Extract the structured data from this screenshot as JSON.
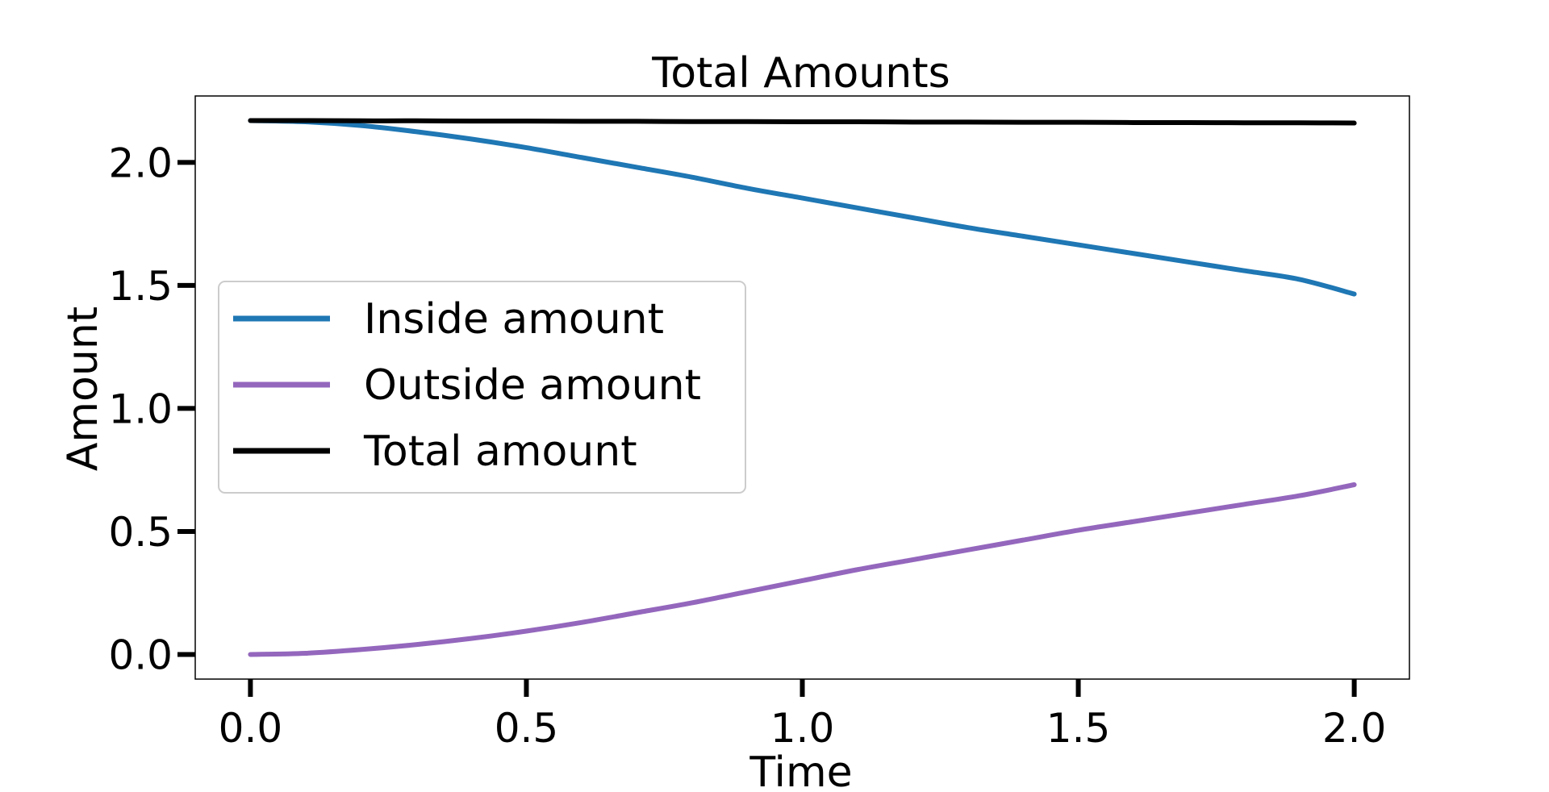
{
  "chart_data": {
    "type": "line",
    "title": "Total Amounts",
    "xlabel": "Time",
    "ylabel": "Amount",
    "xlim": [
      -0.1,
      2.1
    ],
    "ylim": [
      -0.1,
      2.27
    ],
    "xticks": [
      0.0,
      0.5,
      1.0,
      1.5,
      2.0
    ],
    "xtick_labels": [
      "0.0",
      "0.5",
      "1.0",
      "1.5",
      "2.0"
    ],
    "yticks": [
      0.0,
      0.5,
      1.0,
      1.5,
      2.0
    ],
    "ytick_labels": [
      "0.0",
      "0.5",
      "1.0",
      "1.5",
      "2.0"
    ],
    "grid": false,
    "legend_position": "center-left",
    "x": [
      0.0,
      0.1,
      0.2,
      0.3,
      0.4,
      0.5,
      0.6,
      0.7,
      0.8,
      0.9,
      1.0,
      1.1,
      1.2,
      1.3,
      1.4,
      1.5,
      1.6,
      1.7,
      1.8,
      1.9,
      2.0
    ],
    "series": [
      {
        "name": "Inside amount",
        "color": "#1f77b4",
        "values": [
          2.17,
          2.165,
          2.15,
          2.125,
          2.095,
          2.06,
          2.02,
          1.98,
          1.94,
          1.895,
          1.855,
          1.815,
          1.775,
          1.735,
          1.7,
          1.665,
          1.63,
          1.595,
          1.56,
          1.525,
          1.465
        ]
      },
      {
        "name": "Outside amount",
        "color": "#9467bd",
        "values": [
          0.0,
          0.005,
          0.02,
          0.04,
          0.065,
          0.095,
          0.13,
          0.17,
          0.21,
          0.255,
          0.3,
          0.345,
          0.385,
          0.425,
          0.465,
          0.505,
          0.54,
          0.575,
          0.61,
          0.645,
          0.69
        ]
      },
      {
        "name": "Total amount",
        "color": "#000000",
        "values": [
          2.17,
          2.17,
          2.169,
          2.169,
          2.168,
          2.168,
          2.167,
          2.167,
          2.166,
          2.166,
          2.165,
          2.165,
          2.164,
          2.164,
          2.163,
          2.163,
          2.162,
          2.162,
          2.161,
          2.161,
          2.16
        ]
      }
    ]
  }
}
